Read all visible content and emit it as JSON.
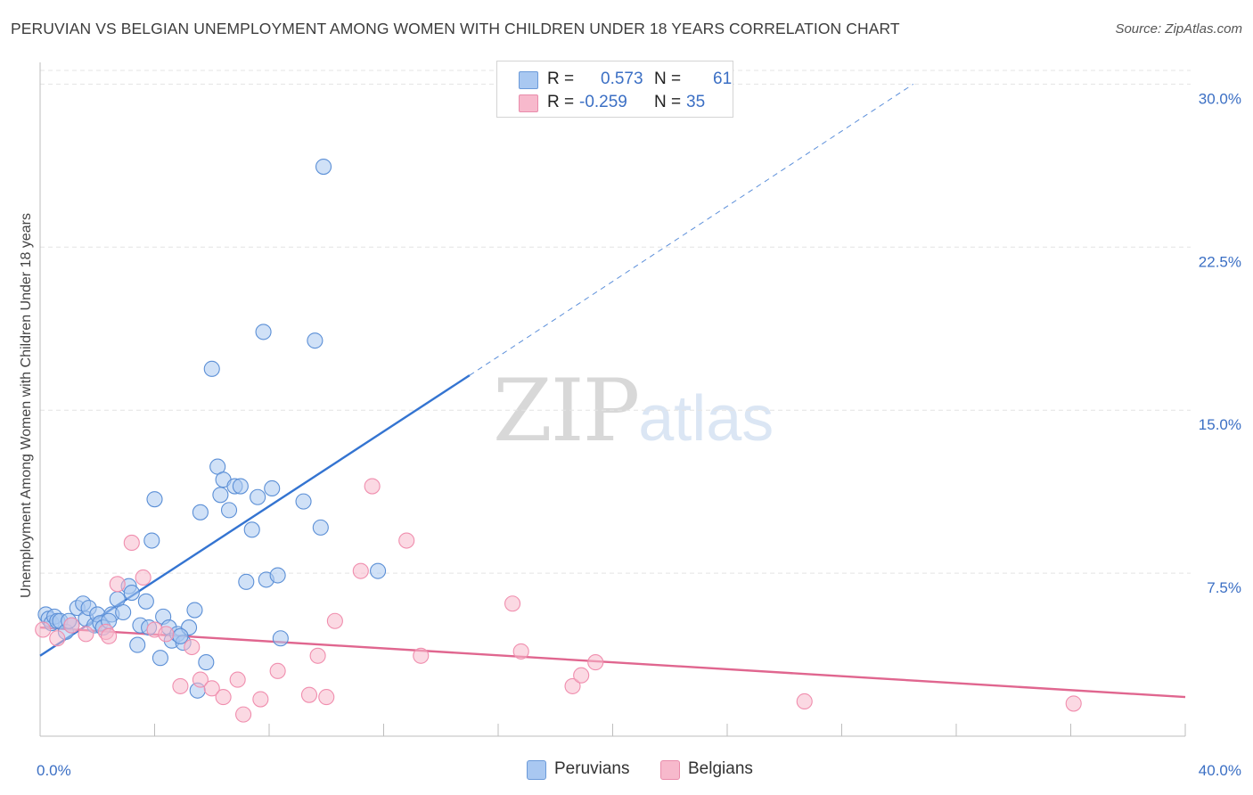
{
  "title": "PERUVIAN VS BELGIAN UNEMPLOYMENT AMONG WOMEN WITH CHILDREN UNDER 18 YEARS CORRELATION CHART",
  "source": "Source: ZipAtlas.com",
  "watermark": {
    "zip": "ZIP",
    "atlas": "atlas"
  },
  "legend": {
    "r_label": "R =",
    "n_label": "N =",
    "series": [
      {
        "name": "Peruvians",
        "r": "0.573",
        "n": "61",
        "color": "#a9c8f1",
        "edge": "#6b9ad9"
      },
      {
        "name": "Belgians",
        "r": "-0.259",
        "n": "35",
        "color": "#f7b9cc",
        "edge": "#e98cab"
      }
    ]
  },
  "chart_data": {
    "type": "scatter",
    "title": "PERUVIAN VS BELGIAN UNEMPLOYMENT AMONG WOMEN WITH CHILDREN UNDER 18 YEARS CORRELATION CHART",
    "xlabel": "",
    "ylabel": "Unemployment Among Women with Children Under 18 years",
    "xlim": [
      0,
      40
    ],
    "ylim": [
      0,
      31
    ],
    "x_tick_labels": [
      "0.0%",
      "40.0%"
    ],
    "y_ticks": [
      7.5,
      15.0,
      22.5,
      30.0
    ],
    "y_tick_labels": [
      "7.5%",
      "15.0%",
      "22.5%",
      "30.0%"
    ],
    "grid": true,
    "series": [
      {
        "name": "Peruvians",
        "color": "#5b8fd6",
        "trend": {
          "x_start": 0.0,
          "y_start": 3.7,
          "x_solid_end": 15.0,
          "y_solid_end": 16.6,
          "x_dash_end": 30.5,
          "y_dash_end": 30.0,
          "color": "#3474d1"
        },
        "points": [
          [
            0.2,
            5.6
          ],
          [
            0.3,
            5.4
          ],
          [
            0.4,
            5.2
          ],
          [
            0.5,
            5.5
          ],
          [
            0.6,
            5.3
          ],
          [
            0.7,
            5.3
          ],
          [
            0.9,
            4.8
          ],
          [
            1.1,
            5.1
          ],
          [
            1.3,
            5.9
          ],
          [
            1.5,
            6.1
          ],
          [
            1.6,
            5.4
          ],
          [
            1.7,
            5.9
          ],
          [
            1.9,
            5.1
          ],
          [
            2.0,
            5.6
          ],
          [
            2.1,
            5.2
          ],
          [
            2.2,
            5.0
          ],
          [
            2.5,
            5.6
          ],
          [
            2.7,
            6.3
          ],
          [
            2.9,
            5.7
          ],
          [
            3.1,
            6.9
          ],
          [
            3.2,
            6.6
          ],
          [
            3.4,
            4.2
          ],
          [
            3.5,
            5.1
          ],
          [
            3.7,
            6.2
          ],
          [
            3.8,
            5.0
          ],
          [
            3.9,
            9.0
          ],
          [
            4.0,
            10.9
          ],
          [
            4.2,
            3.6
          ],
          [
            4.3,
            5.5
          ],
          [
            4.5,
            5.0
          ],
          [
            4.6,
            4.4
          ],
          [
            4.8,
            4.7
          ],
          [
            5.0,
            4.3
          ],
          [
            5.2,
            5.0
          ],
          [
            5.4,
            5.8
          ],
          [
            5.6,
            10.3
          ],
          [
            5.8,
            3.4
          ],
          [
            6.0,
            16.9
          ],
          [
            6.2,
            12.4
          ],
          [
            6.3,
            11.1
          ],
          [
            6.4,
            11.8
          ],
          [
            6.6,
            10.4
          ],
          [
            6.8,
            11.5
          ],
          [
            7.0,
            11.5
          ],
          [
            7.2,
            7.1
          ],
          [
            7.4,
            9.5
          ],
          [
            7.6,
            11.0
          ],
          [
            7.8,
            18.6
          ],
          [
            7.9,
            7.2
          ],
          [
            8.1,
            11.4
          ],
          [
            8.3,
            7.4
          ],
          [
            8.4,
            4.5
          ],
          [
            9.2,
            10.8
          ],
          [
            9.6,
            18.2
          ],
          [
            9.8,
            9.6
          ],
          [
            9.9,
            26.2
          ],
          [
            11.8,
            7.6
          ],
          [
            1.0,
            5.3
          ],
          [
            2.4,
            5.3
          ],
          [
            4.9,
            4.6
          ],
          [
            5.5,
            2.1
          ]
        ]
      },
      {
        "name": "Belgians",
        "color": "#f08eae",
        "trend": {
          "x_start": 0.0,
          "y_start": 5.0,
          "x_end": 40.0,
          "y_end": 1.8,
          "color": "#e0668f"
        },
        "points": [
          [
            0.1,
            4.9
          ],
          [
            0.6,
            4.5
          ],
          [
            1.1,
            5.1
          ],
          [
            1.6,
            4.7
          ],
          [
            2.3,
            4.8
          ],
          [
            2.7,
            7.0
          ],
          [
            3.2,
            8.9
          ],
          [
            3.6,
            7.3
          ],
          [
            4.0,
            4.9
          ],
          [
            4.4,
            4.7
          ],
          [
            4.9,
            2.3
          ],
          [
            5.3,
            4.1
          ],
          [
            5.6,
            2.6
          ],
          [
            6.0,
            2.2
          ],
          [
            6.4,
            1.8
          ],
          [
            6.9,
            2.6
          ],
          [
            7.1,
            1.0
          ],
          [
            7.7,
            1.7
          ],
          [
            8.3,
            3.0
          ],
          [
            9.4,
            1.9
          ],
          [
            9.7,
            3.7
          ],
          [
            10.0,
            1.8
          ],
          [
            10.3,
            5.3
          ],
          [
            11.2,
            7.6
          ],
          [
            11.6,
            11.5
          ],
          [
            12.8,
            9.0
          ],
          [
            13.3,
            3.7
          ],
          [
            16.5,
            6.1
          ],
          [
            16.8,
            3.9
          ],
          [
            18.6,
            2.3
          ],
          [
            18.9,
            2.8
          ],
          [
            19.4,
            3.4
          ],
          [
            26.7,
            1.6
          ],
          [
            36.1,
            1.5
          ],
          [
            2.4,
            4.6
          ]
        ]
      }
    ]
  }
}
